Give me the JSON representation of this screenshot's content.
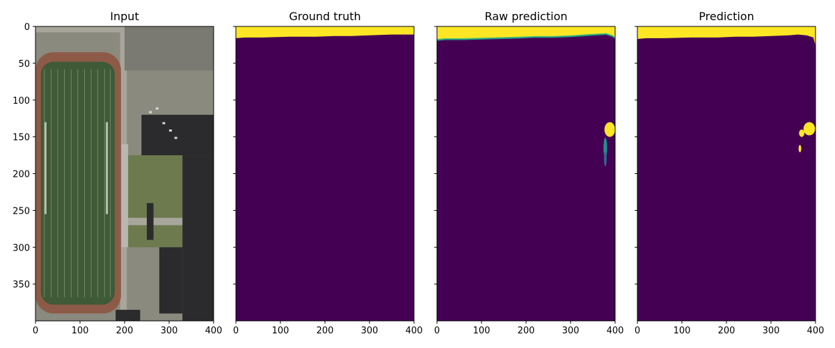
{
  "chart_data": {
    "type": "heatmap",
    "colors": {
      "background": "#440154",
      "foreground": "#fde725",
      "teal": "#21918c",
      "green": "#5ec962",
      "blue": "#31688e",
      "field": "#3f5a36",
      "track": "#8e5a48",
      "roof": "#2b2a2c",
      "ground": "#8a8a7e",
      "grass": "#6d7a4e"
    },
    "xlim": [
      0,
      400
    ],
    "ylim": [
      400,
      0
    ],
    "xticks": [
      0,
      100,
      200,
      300,
      400
    ],
    "yticks": [
      0,
      50,
      100,
      150,
      200,
      250,
      300,
      350
    ],
    "panels": [
      {
        "title": "Input",
        "kind": "image",
        "scene": {
          "track": {
            "x0": 0,
            "x1": 192,
            "y0": 35,
            "y1": 390
          },
          "field": {
            "x0": 12,
            "x1": 178,
            "y0": 48,
            "y1": 378
          },
          "field_lines_x": [
            20,
            35,
            50,
            65,
            80,
            95,
            110,
            125,
            140,
            155,
            168
          ],
          "buildings": [
            {
              "x0": 238,
              "x1": 400,
              "y0": 120,
              "y1": 175
            },
            {
              "x0": 330,
              "x1": 400,
              "y0": 175,
              "y1": 400
            },
            {
              "x0": 180,
              "x1": 235,
              "y0": 385,
              "y1": 400
            },
            {
              "x0": 278,
              "x1": 330,
              "y0": 300,
              "y1": 390
            },
            {
              "x0": 250,
              "x1": 265,
              "y0": 240,
              "y1": 290
            }
          ],
          "paths": [
            {
              "x0": 190,
              "x1": 400,
              "y0": 260,
              "y1": 270
            },
            {
              "x0": 190,
              "x1": 205,
              "y0": 0,
              "y1": 400
            },
            {
              "x0": 0,
              "x1": 400,
              "y0": 0,
              "y1": 8
            }
          ]
        }
      },
      {
        "title": "Ground truth",
        "kind": "mask",
        "profile": [
          [
            0,
            16
          ],
          [
            20,
            15
          ],
          [
            60,
            15
          ],
          [
            120,
            14
          ],
          [
            180,
            14
          ],
          [
            220,
            13
          ],
          [
            260,
            13
          ],
          [
            300,
            12
          ],
          [
            350,
            11
          ],
          [
            400,
            11
          ]
        ],
        "blobs": []
      },
      {
        "title": "Raw prediction",
        "kind": "raw",
        "profile": [
          [
            0,
            17
          ],
          [
            20,
            16
          ],
          [
            60,
            16
          ],
          [
            120,
            15
          ],
          [
            180,
            14
          ],
          [
            220,
            13
          ],
          [
            260,
            13
          ],
          [
            300,
            12
          ],
          [
            350,
            10
          ],
          [
            380,
            9
          ],
          [
            395,
            12
          ],
          [
            400,
            15
          ]
        ],
        "blobs": [
          {
            "cx": 388,
            "cy": 140,
            "rx": 12,
            "ry": 10,
            "color": "foreground"
          },
          {
            "cx": 378,
            "cy": 165,
            "rx": 4,
            "ry": 14,
            "color": "teal"
          },
          {
            "cx": 378,
            "cy": 180,
            "rx": 3,
            "ry": 10,
            "color": "blue"
          }
        ]
      },
      {
        "title": "Prediction",
        "kind": "mask",
        "profile": [
          [
            0,
            17
          ],
          [
            20,
            16
          ],
          [
            60,
            16
          ],
          [
            120,
            15
          ],
          [
            180,
            15
          ],
          [
            220,
            14
          ],
          [
            260,
            14
          ],
          [
            300,
            13
          ],
          [
            340,
            12
          ],
          [
            360,
            11
          ],
          [
            380,
            12
          ],
          [
            395,
            15
          ],
          [
            400,
            26
          ]
        ],
        "blobs": [
          {
            "cx": 386,
            "cy": 139,
            "rx": 13,
            "ry": 9,
            "color": "foreground"
          },
          {
            "cx": 369,
            "cy": 145,
            "rx": 6,
            "ry": 5,
            "color": "foreground"
          },
          {
            "cx": 365,
            "cy": 166,
            "rx": 3,
            "ry": 5,
            "color": "foreground"
          }
        ]
      }
    ]
  }
}
